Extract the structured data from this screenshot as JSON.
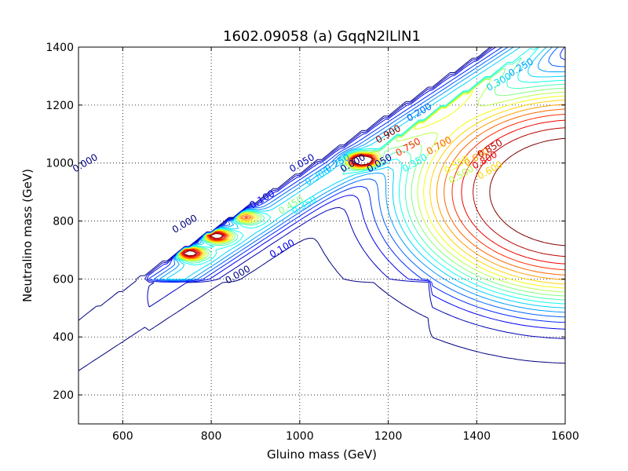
{
  "chart_data": {
    "type": "contour",
    "title": "1602.09058 (a) GqqN2lLlN1",
    "xlabel": "Gluino mass (GeV)",
    "ylabel": "Neutralino mass (GeV)",
    "xlim": [
      500,
      1600
    ],
    "ylim": [
      100,
      1400
    ],
    "xticks": [
      600,
      800,
      1000,
      1200,
      1400,
      1600
    ],
    "yticks": [
      200,
      400,
      600,
      800,
      1000,
      1200,
      1400
    ],
    "grid": true,
    "colormap": "jet",
    "levels": [
      0.0,
      0.05,
      0.1,
      0.15,
      0.2,
      0.25,
      0.3,
      0.35,
      0.4,
      0.45,
      0.5,
      0.55,
      0.6,
      0.65,
      0.7,
      0.75,
      0.8,
      0.85,
      0.9
    ],
    "contour_labels": [
      {
        "text": "0.000",
        "x": 740,
        "y": 790,
        "level": 0.0
      },
      {
        "text": "0.000",
        "x": 1120,
        "y": 1000,
        "level": 0.0
      },
      {
        "text": "0.000",
        "x": 515,
        "y": 1000,
        "level": 0.0
      },
      {
        "text": "0.000",
        "x": 860,
        "y": 615,
        "level": 0.0
      },
      {
        "text": "0.050",
        "x": 1005,
        "y": 1000,
        "level": 0.05
      },
      {
        "text": "0.050",
        "x": 1180,
        "y": 1000,
        "level": 0.05
      },
      {
        "text": "0.100",
        "x": 915,
        "y": 875,
        "level": 0.1
      },
      {
        "text": "0.100",
        "x": 960,
        "y": 705,
        "level": 0.1
      },
      {
        "text": "0.200",
        "x": 1270,
        "y": 1175,
        "level": 0.2
      },
      {
        "text": "0.250",
        "x": 1085,
        "y": 1000,
        "level": 0.25
      },
      {
        "text": "0.250",
        "x": 1500,
        "y": 1330,
        "level": 0.25
      },
      {
        "text": "0.300",
        "x": 1040,
        "y": 955,
        "level": 0.3
      },
      {
        "text": "0.300",
        "x": 1450,
        "y": 1280,
        "level": 0.3
      },
      {
        "text": "0.350",
        "x": 1010,
        "y": 855,
        "level": 0.35
      },
      {
        "text": "0.350",
        "x": 1260,
        "y": 1000,
        "level": 0.35
      },
      {
        "text": "0.450",
        "x": 980,
        "y": 855,
        "level": 0.45
      },
      {
        "text": "0.500",
        "x": 1365,
        "y": 960,
        "level": 0.5
      },
      {
        "text": "0.550",
        "x": 1355,
        "y": 995,
        "level": 0.55
      },
      {
        "text": "0.600",
        "x": 1430,
        "y": 975,
        "level": 0.6
      },
      {
        "text": "0.650",
        "x": 1400,
        "y": 1020,
        "level": 0.65
      },
      {
        "text": "0.700",
        "x": 1315,
        "y": 1060,
        "level": 0.7
      },
      {
        "text": "0.750",
        "x": 1245,
        "y": 1055,
        "level": 0.75
      },
      {
        "text": "0.800",
        "x": 1418,
        "y": 1010,
        "level": 0.8
      },
      {
        "text": "0.850",
        "x": 1430,
        "y": 1050,
        "level": 0.85
      },
      {
        "text": "0.900",
        "x": 1200,
        "y": 1100,
        "level": 0.9
      }
    ],
    "peaks": [
      {
        "x": 750,
        "y": 690,
        "value": 0.9
      },
      {
        "x": 810,
        "y": 750,
        "value": 0.9
      },
      {
        "x": 875,
        "y": 815,
        "value": 0.6
      },
      {
        "x": 1140,
        "y": 1010,
        "value": 0.9
      }
    ]
  }
}
